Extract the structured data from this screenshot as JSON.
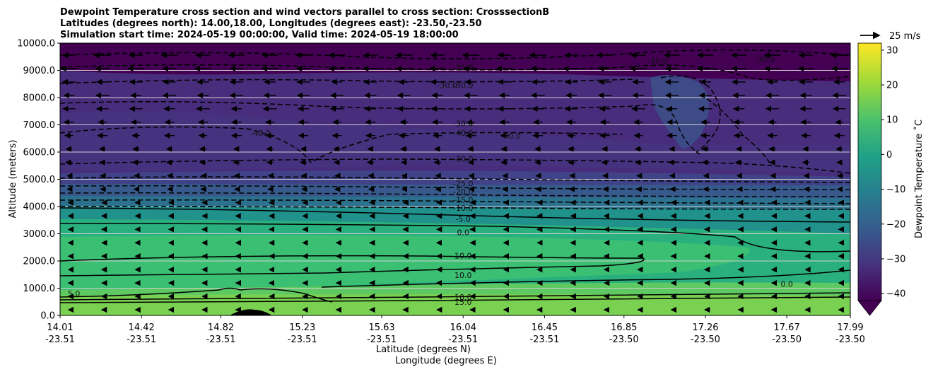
{
  "chart_data": {
    "type": "contour",
    "title_lines": [
      "Dewpoint Temperature cross section and wind vectors parallel to cross section: CrosssectionB",
      "Latitudes (degrees north): 14.00,18.00, Longitudes (degrees east): -23.50,-23.50",
      "Simulation start time: 2024-05-19 00:00:00, Valid time: 2024-05-19 18:00:00"
    ],
    "ylabel": "Altitude (meters)",
    "xlabel_lines": [
      "Latitude (degrees N)",
      "Longitude (degrees E)"
    ],
    "ylim": [
      0,
      10000
    ],
    "y_ticks": [
      "0.0",
      "1000.0",
      "2000.0",
      "3000.0",
      "4000.0",
      "5000.0",
      "6000.0",
      "7000.0",
      "8000.0",
      "9000.0",
      "10000.0"
    ],
    "x_ticks": [
      {
        "lat": "14.01",
        "lon": "-23.51"
      },
      {
        "lat": "14.42",
        "lon": "-23.51"
      },
      {
        "lat": "14.82",
        "lon": "-23.51"
      },
      {
        "lat": "15.23",
        "lon": "-23.51"
      },
      {
        "lat": "15.63",
        "lon": "-23.51"
      },
      {
        "lat": "16.04",
        "lon": "-23.51"
      },
      {
        "lat": "16.45",
        "lon": "-23.51"
      },
      {
        "lat": "16.85",
        "lon": "-23.50"
      },
      {
        "lat": "17.26",
        "lon": "-23.50"
      },
      {
        "lat": "17.67",
        "lon": "-23.50"
      },
      {
        "lat": "17.99",
        "lon": "-23.50"
      }
    ],
    "xlim": [
      14.01,
      17.99
    ],
    "grid": "horizontal",
    "colorbar": {
      "label": "Dewpoint Temperature ˚C",
      "range": [
        -42,
        32
      ],
      "ticks": [
        "30",
        "20",
        "10",
        "0",
        "−10",
        "−20",
        "−30",
        "−40"
      ],
      "extend": "min"
    },
    "wind_key": "25 m/s",
    "contour_labels": [
      {
        "text": "-35.0",
        "lat": 16.04,
        "alt": 9100
      },
      {
        "text": "-30.0",
        "lat": 16.04,
        "alt": 8450
      },
      {
        "text": "-30.0",
        "lat": 15.96,
        "alt": 8450
      },
      {
        "text": "-30.0",
        "lat": 17.02,
        "alt": 9350
      },
      {
        "text": "-30.0",
        "lat": 17.56,
        "alt": 9400
      },
      {
        "text": "-30.0",
        "lat": 16.04,
        "alt": 7050
      },
      {
        "text": "-30.0",
        "lat": 16.04,
        "alt": 5750
      },
      {
        "text": "-40.0",
        "lat": 15.02,
        "alt": 6700
      },
      {
        "text": "-40.0",
        "lat": 16.04,
        "alt": 6700
      },
      {
        "text": "-40.0",
        "lat": 16.28,
        "alt": 6600
      },
      {
        "text": "-25.0",
        "lat": 16.04,
        "alt": 4850
      },
      {
        "text": "-20.0",
        "lat": 16.04,
        "alt": 4550
      },
      {
        "text": "-15.0",
        "lat": 16.04,
        "alt": 4250
      },
      {
        "text": "-10.0",
        "lat": 16.04,
        "alt": 3950
      },
      {
        "text": "-5.0",
        "lat": 16.04,
        "alt": 3550
      },
      {
        "text": "0.0",
        "lat": 16.04,
        "alt": 3050
      },
      {
        "text": "10.0",
        "lat": 16.04,
        "alt": 2190
      },
      {
        "text": "10.0",
        "lat": 16.04,
        "alt": 1480
      },
      {
        "text": "10.0",
        "lat": 16.04,
        "alt": 680
      },
      {
        "text": "15.0",
        "lat": 16.04,
        "alt": 490
      },
      {
        "text": "0.0",
        "lat": 17.67,
        "alt": 1150
      },
      {
        "text": "5.0",
        "lat": 14.08,
        "alt": 800
      }
    ]
  }
}
